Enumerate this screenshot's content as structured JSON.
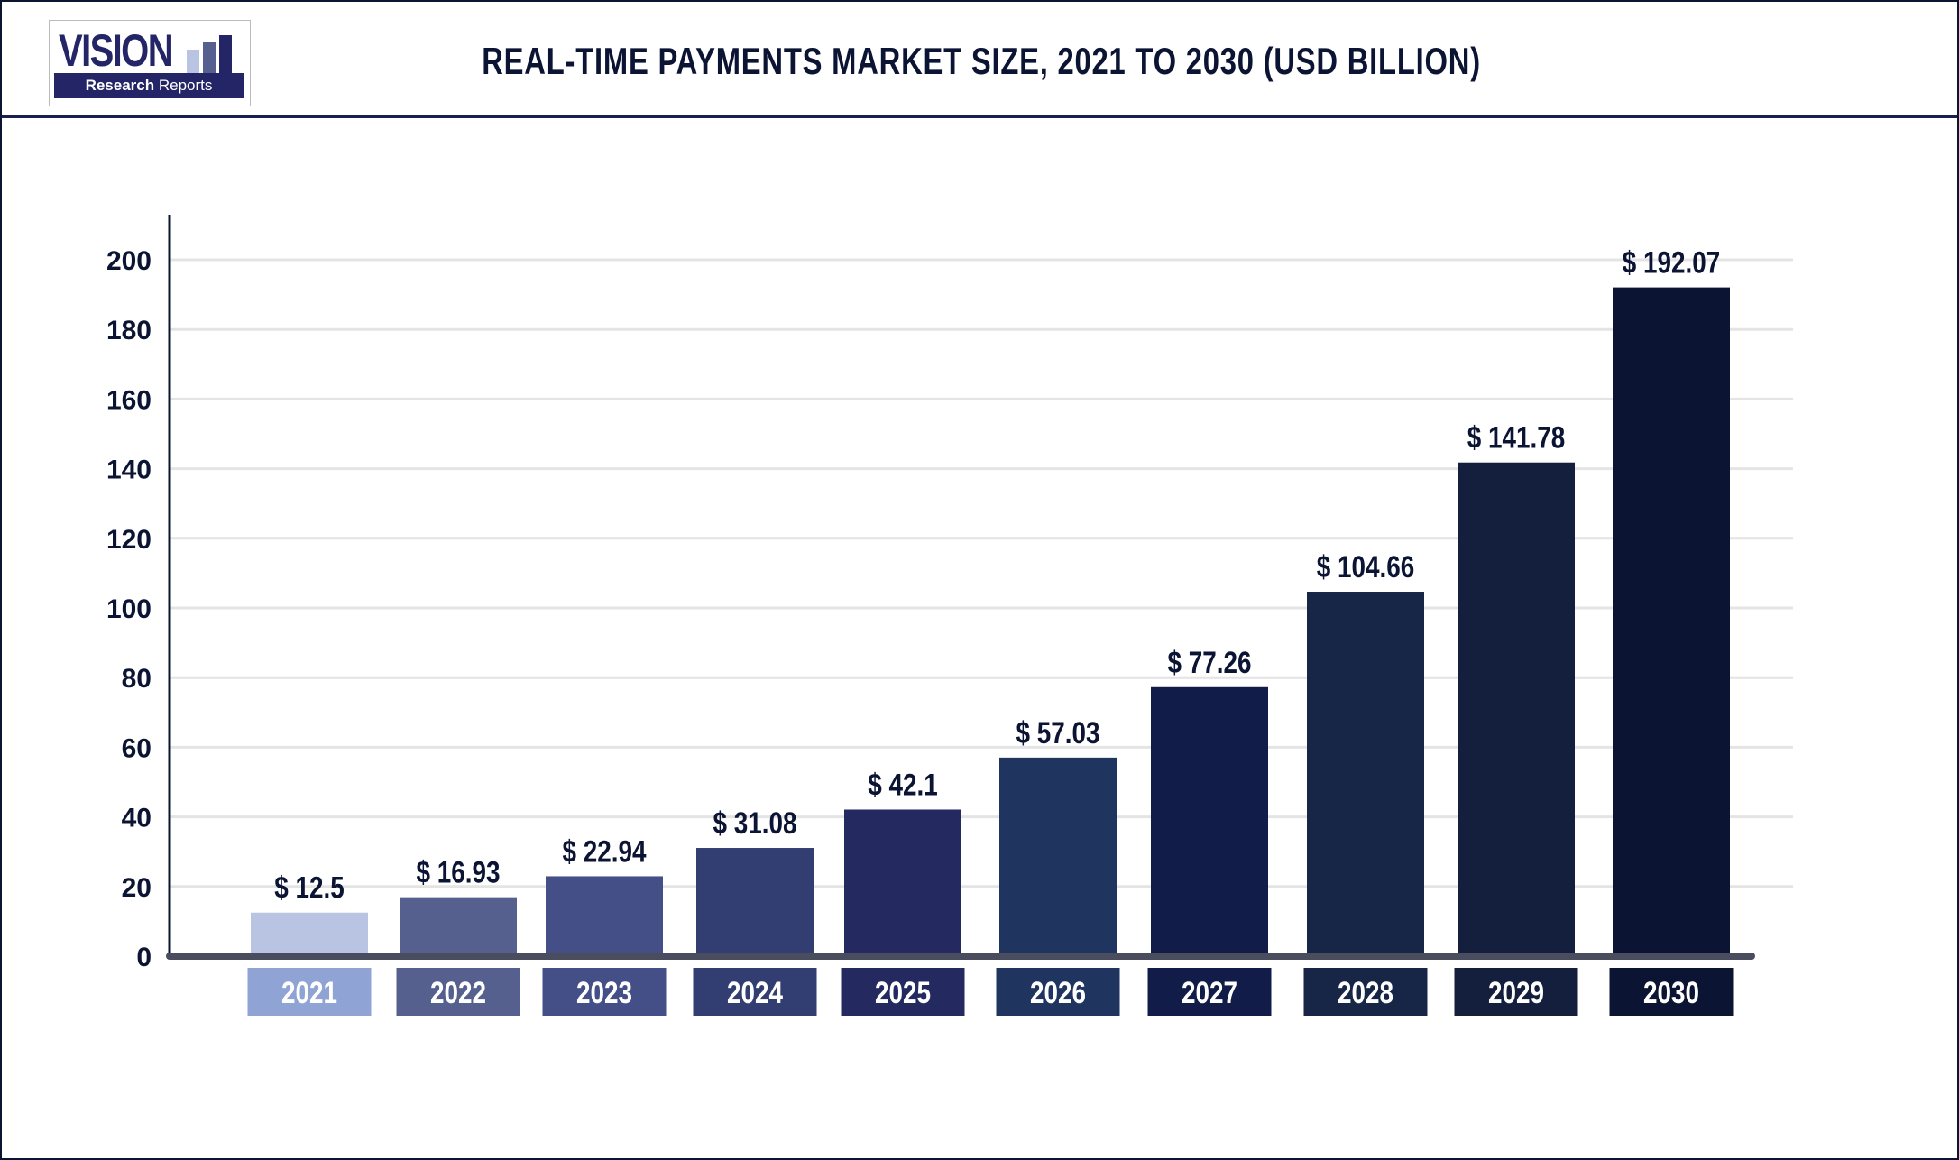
{
  "header": {
    "logo": {
      "word": "VISION",
      "tagline_bold": "Research",
      "tagline": "Reports"
    },
    "title": "REAL-TIME PAYMENTS MARKET SIZE, 2021 TO 2030 (USD BILLION)"
  },
  "chart_data": {
    "type": "bar",
    "title": "REAL-TIME PAYMENTS MARKET SIZE, 2021 TO 2030 (USD BILLION)",
    "categories": [
      "2021",
      "2022",
      "2023",
      "2024",
      "2025",
      "2026",
      "2027",
      "2028",
      "2029",
      "2030"
    ],
    "values": [
      12.5,
      16.93,
      22.94,
      31.08,
      42.1,
      57.03,
      77.26,
      104.66,
      141.78,
      192.07
    ],
    "data_labels": [
      "$ 12.5",
      "$ 16.93",
      "$ 22.94",
      "$ 31.08",
      "$ 42.1",
      "$ 57.03",
      "$ 77.26",
      "$ 104.66",
      "$ 141.78",
      "$ 192.07"
    ],
    "ylim": [
      0,
      200
    ],
    "yticks": [
      0,
      20,
      40,
      60,
      80,
      100,
      120,
      140,
      160,
      180,
      200
    ],
    "grid": true,
    "xlabel": "",
    "ylabel": "",
    "bar_colors": [
      "#b9c3e2",
      "#55608e",
      "#444f88",
      "#323d72",
      "#242a60",
      "#1f3560",
      "#111d48",
      "#172647",
      "#131f3d",
      "#0b1433"
    ],
    "category_box_colors": [
      "#8fa3d4",
      "#55608e",
      "#444f88",
      "#323d72",
      "#242a60",
      "#1f3560",
      "#111d48",
      "#172647",
      "#131f3d",
      "#0b1433"
    ]
  }
}
